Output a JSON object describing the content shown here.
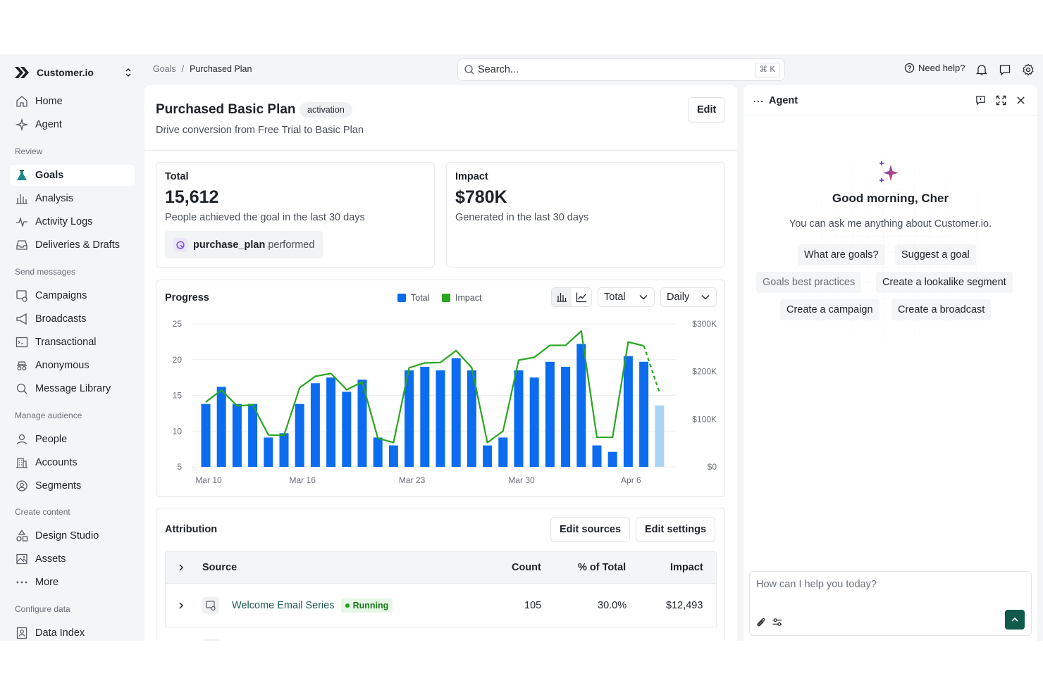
{
  "workspace": {
    "name": "Customer.io"
  },
  "nav": {
    "top": [
      {
        "label": "Home",
        "icon": "home-icon"
      },
      {
        "label": "Agent",
        "icon": "sparkle-icon"
      }
    ],
    "sections": [
      {
        "title": "Review",
        "items": [
          {
            "label": "Goals",
            "icon": "flask-icon",
            "active": true
          },
          {
            "label": "Analysis",
            "icon": "bar-chart-icon"
          },
          {
            "label": "Activity Logs",
            "icon": "pulse-icon"
          },
          {
            "label": "Deliveries & Drafts",
            "icon": "inbox-icon"
          }
        ]
      },
      {
        "title": "Send messages",
        "items": [
          {
            "label": "Campaigns",
            "icon": "campaign-icon"
          },
          {
            "label": "Broadcasts",
            "icon": "megaphone-icon"
          },
          {
            "label": "Transactional",
            "icon": "terminal-icon"
          },
          {
            "label": "Anonymous",
            "icon": "anonymous-icon"
          },
          {
            "label": "Message Library",
            "icon": "search-icon"
          }
        ]
      },
      {
        "title": "Manage audience",
        "items": [
          {
            "label": "People",
            "icon": "person-icon"
          },
          {
            "label": "Accounts",
            "icon": "building-icon"
          },
          {
            "label": "Segments",
            "icon": "segment-icon"
          }
        ]
      },
      {
        "title": "Create content",
        "items": [
          {
            "label": "Design Studio",
            "icon": "shapes-icon"
          },
          {
            "label": "Assets",
            "icon": "image-icon"
          },
          {
            "label": "More",
            "icon": "more-icon"
          }
        ]
      },
      {
        "title": "Configure data",
        "items": [
          {
            "label": "Data Index",
            "icon": "id-card-icon"
          }
        ]
      }
    ]
  },
  "topbar": {
    "breadcrumb": {
      "parent": "Goals",
      "separator": "/",
      "current": "Purchased Plan"
    },
    "search": {
      "placeholder": "Search...",
      "shortcut": "⌘ K"
    },
    "help_label": "Need help?"
  },
  "goal": {
    "title": "Purchased Basic Plan",
    "tag": "activation",
    "description": "Drive conversion from Free Trial to Basic Plan",
    "edit_label": "Edit"
  },
  "stats": {
    "total": {
      "label": "Total",
      "value": "15,612",
      "sub": "People achieved the goal in the last 30 days",
      "event_name": "purchase_plan",
      "event_suffix": "performed"
    },
    "impact": {
      "label": "Impact",
      "value": "$780K",
      "sub": "Generated in the last 30 days"
    }
  },
  "progress": {
    "title": "Progress",
    "legend_total": "Total",
    "legend_impact": "Impact",
    "metric_select": "Total",
    "interval_select": "Daily"
  },
  "chart_data": {
    "type": "bar",
    "title": "Progress",
    "x_tick_labels": [
      "Mar 10",
      "Mar 16",
      "Mar 23",
      "Mar 30",
      "Apr 6"
    ],
    "y_left_ticks": [
      "25",
      "20",
      "15",
      "10",
      "5"
    ],
    "y_right_ticks": [
      "$300K",
      "$200K",
      "$100K",
      "$0"
    ],
    "ylim_left": [
      5,
      25
    ],
    "ylim_right": [
      0,
      300000
    ],
    "colors": {
      "total": "#0b6cf0",
      "impact": "#2aa520",
      "partial": "#a8d4f5"
    },
    "series": [
      {
        "name": "Total",
        "kind": "bar",
        "values": [
          13.8,
          16.2,
          13.8,
          13.8,
          9.1,
          9.7,
          13.8,
          16.7,
          17.5,
          15.5,
          17.2,
          9.1,
          8.0,
          18.5,
          19.0,
          18.5,
          20.2,
          18.5,
          8.0,
          9.1,
          18.5,
          17.5,
          19.7,
          19.0,
          22.2,
          8.0,
          7.1,
          20.5,
          19.7,
          13.6
        ],
        "last_partial": true
      },
      {
        "name": "Impact",
        "kind": "line",
        "values": [
          136000,
          161000,
          128000,
          130000,
          67000,
          66000,
          166000,
          190000,
          196000,
          162000,
          178000,
          60000,
          51000,
          208000,
          218000,
          219000,
          244000,
          208000,
          51000,
          75000,
          224000,
          230000,
          255000,
          255000,
          285000,
          62000,
          62000,
          262000,
          254000,
          156000
        ],
        "last_dashed": true
      }
    ]
  },
  "attribution": {
    "title": "Attribution",
    "edit_sources": "Edit sources",
    "edit_settings": "Edit settings",
    "columns": {
      "source": "Source",
      "count": "Count",
      "pct": "% of Total",
      "impact": "Impact"
    },
    "rows": [
      {
        "source": "Welcome Email Series",
        "status": "Running",
        "count": "105",
        "pct": "30.0%",
        "impact": "$12,493"
      }
    ]
  },
  "agent": {
    "title": "Agent",
    "greeting": "Good morning, Cher",
    "subtitle": "You can ask me anything about Customer.io.",
    "suggestions": [
      {
        "label": "What are goals?"
      },
      {
        "label": "Suggest a goal"
      },
      {
        "label": "Goals best practices"
      },
      {
        "label": "Create a lookalike segment"
      },
      {
        "label": "Create a campaign"
      },
      {
        "label": "Create a broadcast"
      }
    ],
    "input_placeholder": "How can I help you today?"
  }
}
